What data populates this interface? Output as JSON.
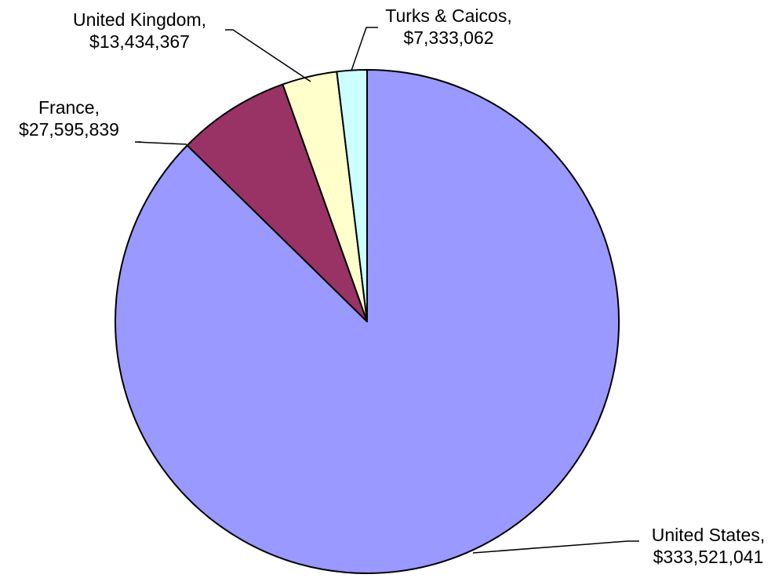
{
  "chart_data": {
    "type": "pie",
    "title": "",
    "start_angle_deg": 0,
    "direction": "clockwise",
    "slices": [
      {
        "label": "United States",
        "value": 333521041,
        "value_text": "$333,521,041",
        "color": "#9999FF"
      },
      {
        "label": "France",
        "value": 27595839,
        "value_text": "$27,595,839",
        "color": "#993366"
      },
      {
        "label": "United Kingdom",
        "value": 13434367,
        "value_text": "$13,434,367",
        "color": "#FFFFCC"
      },
      {
        "label": "Turks & Caicos",
        "value": 7333062,
        "value_text": "$7,333,062",
        "color": "#CCFFFF"
      }
    ],
    "data_labels": "category-name-and-value",
    "legend": "none"
  }
}
